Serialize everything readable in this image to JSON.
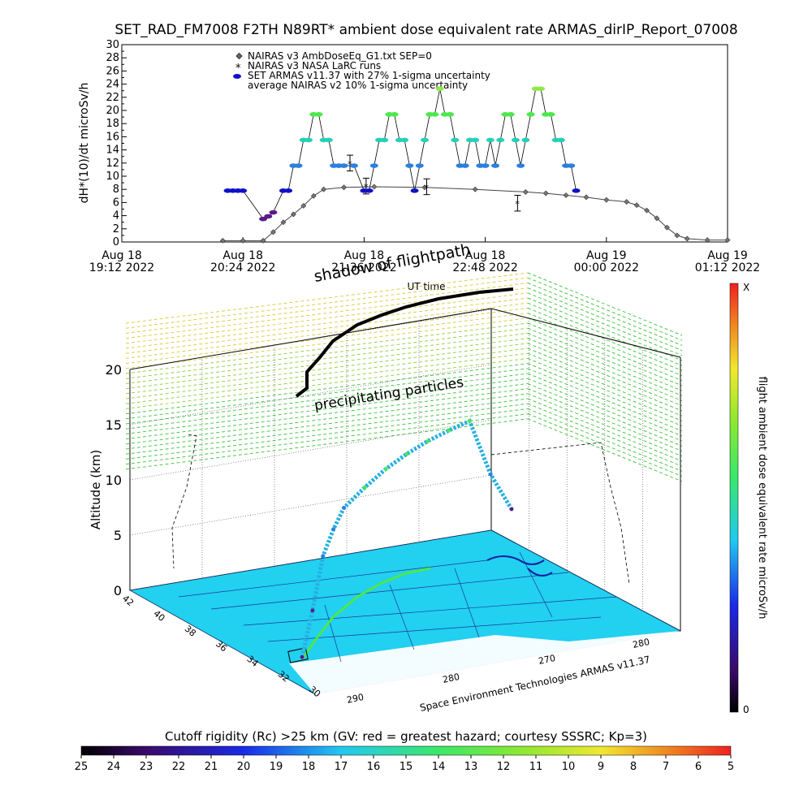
{
  "title": "SET_RAD_FM7008  F2TH N89RT* ambient dose equivalent rate ARMAS_dirIP_Report_07008",
  "top_chart": {
    "ylabel": "dH*(10)/dt microSv/h",
    "xlabel": "UT time",
    "legend": [
      "NAIRAS v3 AmbDoseEq_G1.txt SEP=0",
      "NAIRAS v3 NASA LaRC runs",
      "SET ARMAS v11.37 with 27% 1-sigma uncertainty",
      "average NAIRAS v2 10% 1-sigma uncertainty"
    ],
    "x_ticks": [
      {
        "line1": "Aug 18",
        "line2": "19:12 2022"
      },
      {
        "line1": "Aug 18",
        "line2": "20:24 2022"
      },
      {
        "line1": "Aug 18",
        "line2": "21:36 2022"
      },
      {
        "line1": "Aug 18",
        "line2": "22:48 2022"
      },
      {
        "line1": "Aug 19",
        "line2": "00:00 2022"
      },
      {
        "line1": "Aug 19",
        "line2": "01:12 2022"
      }
    ],
    "y_ticks": [
      "0",
      "2",
      "4",
      "6",
      "8",
      "10",
      "12",
      "14",
      "16",
      "18",
      "20",
      "22",
      "24",
      "26",
      "28",
      "30"
    ]
  },
  "chart_data": {
    "type": "scatter",
    "x_unit": "hours UT since Aug 18 19:12 2022",
    "xlim": [
      0,
      6
    ],
    "ylim": [
      0,
      30
    ],
    "series": [
      {
        "name": "NAIRAS v3 AmbDoseEq_G1.txt SEP=0",
        "x": [
          1.0,
          1.2,
          1.4,
          1.5,
          1.6,
          1.7,
          1.8,
          1.9,
          2.0,
          2.2,
          2.5,
          3.0,
          3.5,
          4.0,
          4.2,
          4.4,
          4.6,
          4.8,
          5.0,
          5.1,
          5.2,
          5.3,
          5.4,
          5.5,
          5.6,
          5.8,
          6.0
        ],
        "y": [
          0.2,
          0.2,
          0.2,
          1.5,
          3.0,
          4.2,
          5.5,
          7.0,
          8.0,
          8.3,
          8.4,
          8.3,
          8.0,
          7.6,
          7.4,
          7.1,
          6.8,
          6.4,
          6.1,
          5.6,
          4.8,
          3.6,
          2.2,
          1.0,
          0.5,
          0.3,
          0.3
        ]
      },
      {
        "name": "NAIRAS v3 NASA LaRC runs",
        "x": [
          2.26,
          2.42,
          3.02,
          3.92
        ],
        "y": [
          12.0,
          8.5,
          8.4,
          5.9
        ]
      },
      {
        "name": "SET ARMAS v11.37 with 27% 1-sigma uncertainty",
        "x": [
          1.05,
          1.1,
          1.15,
          1.2,
          1.4,
          1.45,
          1.5,
          1.6,
          1.65,
          1.7,
          1.75,
          1.8,
          1.85,
          1.9,
          1.95,
          2.0,
          2.05,
          2.1,
          2.15,
          2.2,
          2.3,
          2.4,
          2.45,
          2.5,
          2.55,
          2.6,
          2.65,
          2.7,
          2.75,
          2.8,
          2.85,
          2.9,
          2.95,
          3.0,
          3.05,
          3.1,
          3.15,
          3.2,
          3.25,
          3.3,
          3.35,
          3.4,
          3.45,
          3.5,
          3.55,
          3.6,
          3.65,
          3.7,
          3.75,
          3.8,
          3.85,
          3.9,
          3.95,
          4.0,
          4.05,
          4.1,
          4.15,
          4.2,
          4.25,
          4.3,
          4.35,
          4.4,
          4.45,
          4.5
        ],
        "y": [
          7.8,
          7.8,
          7.8,
          7.8,
          3.5,
          3.9,
          4.5,
          7.8,
          7.8,
          11.6,
          11.6,
          15.5,
          15.5,
          19.4,
          19.4,
          15.5,
          15.5,
          11.6,
          11.6,
          11.6,
          11.6,
          7.8,
          7.8,
          11.6,
          15.5,
          15.5,
          19.4,
          19.4,
          15.5,
          15.5,
          11.6,
          7.8,
          11.6,
          15.5,
          19.4,
          19.4,
          23.3,
          19.4,
          19.4,
          15.5,
          11.6,
          11.6,
          15.5,
          15.5,
          11.6,
          11.6,
          15.5,
          11.6,
          15.5,
          19.4,
          19.4,
          15.5,
          11.6,
          15.5,
          19.4,
          23.3,
          23.3,
          19.4,
          19.4,
          15.5,
          15.5,
          11.6,
          11.6,
          7.8
        ]
      }
    ]
  },
  "scene": {
    "label_flightpath": "shadow of flightpath",
    "label_particles": "precipitating particles",
    "zlabel": "Altitude (km)",
    "z_ticks": [
      "0",
      "5",
      "10",
      "15",
      "20"
    ],
    "lat_ticks": [
      "42",
      "40",
      "38",
      "36",
      "34",
      "32",
      "30"
    ],
    "lon_ticks": [
      "290",
      "280",
      "270",
      "280"
    ],
    "credit": "Space Environment Technologies ARMAS v11.37",
    "flight_alt": {
      "x": [
        0.0,
        0.05,
        0.1,
        0.15,
        0.2,
        0.3,
        0.4,
        0.5,
        0.6,
        0.7,
        0.8,
        0.9,
        1.0
      ],
      "y": [
        0.2,
        4.0,
        8.5,
        10.5,
        12.0,
        13.0,
        13.8,
        14.3,
        14.6,
        14.7,
        14.7,
        9.0,
        5.0
      ]
    }
  },
  "colorbar_right": {
    "label": "flight ambient dose equivalent rate microSv/h",
    "top": "X",
    "bottom": "0"
  },
  "colorbar_bottom": {
    "title": "Cutoff rigidity (Rc) >25 km (GV: red = greatest hazard; courtesy SSSRC; Kp=3)",
    "ticks": [
      "25",
      "24",
      "23",
      "22",
      "21",
      "20",
      "19",
      "18",
      "17",
      "16",
      "15",
      "14",
      "13",
      "12",
      "11",
      "10",
      "9",
      "8",
      "7",
      "6",
      "5"
    ]
  },
  "colors": {
    "armas_dark_blue": "#1010c8",
    "armas_purple": "#5a1a8a",
    "armas_blue": "#2a80e0",
    "armas_cyan": "#26d0b8",
    "armas_green": "#4ce84c",
    "armas_lime": "#8ee84c",
    "map_cyan": "#22d0f0",
    "model_gray": "#555555"
  }
}
